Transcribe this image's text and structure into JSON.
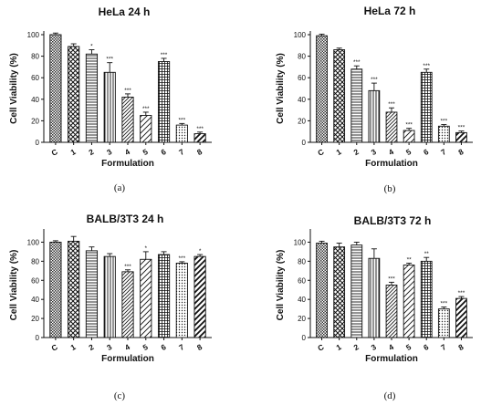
{
  "chart_data": [
    {
      "type": "bar",
      "panel": "(a)",
      "title": "HeLa 24 h",
      "xlabel": "Formulation",
      "ylabel": "Cell Viability (%)",
      "ylim": [
        0,
        100
      ],
      "yticks": [
        0,
        20,
        40,
        60,
        80,
        100
      ],
      "categories": [
        "C",
        "1",
        "2",
        "3",
        "4",
        "5",
        "6",
        "7",
        "8"
      ],
      "values": [
        100,
        89,
        82,
        65,
        42,
        25,
        75,
        16,
        8
      ],
      "errors": [
        1.5,
        2.5,
        4,
        9,
        3,
        3,
        3,
        1.5,
        1.5
      ],
      "significance": [
        "",
        "",
        "*",
        "***",
        "***",
        "***",
        "***",
        "***",
        "***"
      ],
      "grid": false
    },
    {
      "type": "bar",
      "panel": "(b)",
      "title": "HeLa 72 h",
      "xlabel": "Formulation",
      "ylabel": "Cell Viability (%)",
      "ylim": [
        0,
        100
      ],
      "yticks": [
        0,
        20,
        40,
        60,
        80,
        100
      ],
      "categories": [
        "C",
        "1",
        "2",
        "3",
        "4",
        "5",
        "6",
        "7",
        "8"
      ],
      "values": [
        99,
        86,
        68,
        48,
        28,
        11,
        65,
        15,
        9
      ],
      "errors": [
        1.5,
        1.5,
        3,
        7,
        4,
        2,
        3,
        1.5,
        1.5
      ],
      "significance": [
        "",
        "",
        "***",
        "***",
        "***",
        "***",
        "***",
        "***",
        "***"
      ],
      "grid": false
    },
    {
      "type": "bar",
      "panel": "(c)",
      "title": "BALB/3T3 24 h",
      "xlabel": "Formulation",
      "ylabel": "Cell Viability (%)",
      "ylim": [
        0,
        110
      ],
      "yticks": [
        0,
        20,
        40,
        60,
        80,
        100
      ],
      "categories": [
        "C",
        "1",
        "2",
        "3",
        "4",
        "5",
        "6",
        "7",
        "8"
      ],
      "values": [
        100,
        101,
        91,
        85,
        69,
        82,
        87,
        78,
        85
      ],
      "errors": [
        1.5,
        5,
        4,
        3,
        2,
        8,
        3,
        1.5,
        2
      ],
      "significance": [
        "",
        "",
        "",
        "",
        "***",
        "*",
        "",
        "***",
        "*"
      ],
      "grid": false
    },
    {
      "type": "bar",
      "panel": "(d)",
      "title": "BALB/3T3 72 h",
      "xlabel": "Formulation",
      "ylabel": "Cell Viability (%)",
      "ylim": [
        0,
        110
      ],
      "yticks": [
        0,
        20,
        40,
        60,
        80,
        100
      ],
      "categories": [
        "C",
        "1",
        "2",
        "3",
        "4",
        "5",
        "6",
        "7",
        "8"
      ],
      "values": [
        99,
        95,
        97,
        83,
        55,
        76,
        80,
        30,
        41
      ],
      "errors": [
        2,
        4,
        3,
        10,
        3,
        2,
        4,
        2,
        2
      ],
      "significance": [
        "",
        "",
        "",
        "",
        "***",
        "**",
        "**",
        "***",
        "***"
      ],
      "grid": false
    }
  ],
  "colors": {
    "bar_fill": "#ffffff",
    "ink": "#111111"
  }
}
